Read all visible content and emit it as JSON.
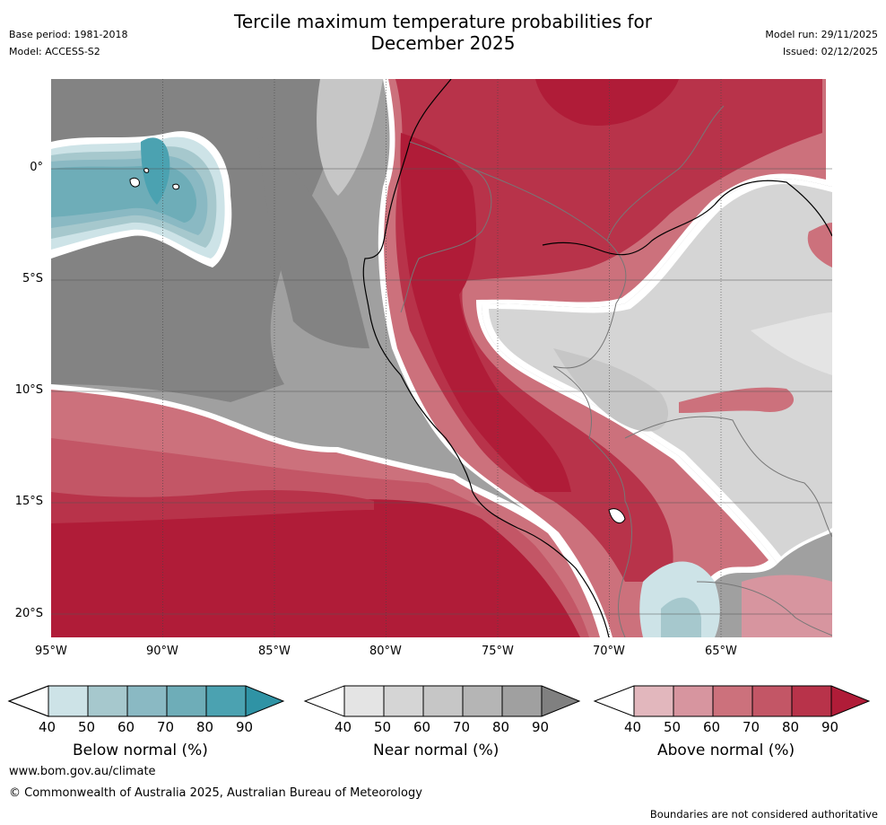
{
  "header": {
    "title_line1": "Tercile maximum temperature probabilities for",
    "title_line2": "December 2025",
    "base_period": "Base period: 1981-2018",
    "model": "Model: ACCESS-S2",
    "model_run": "Model run: 29/11/2025",
    "issued": "Issued: 02/12/2025"
  },
  "map": {
    "lat_labels": [
      "0°",
      "5°S",
      "10°S",
      "15°S",
      "20°S"
    ],
    "lon_labels": [
      "95°W",
      "90°W",
      "85°W",
      "80°W",
      "75°W",
      "70°W",
      "65°W"
    ]
  },
  "colorbars": [
    {
      "label": "Below normal (%)",
      "ticks": [
        "40",
        "50",
        "60",
        "70",
        "80",
        "90"
      ],
      "colors": [
        "#cde3e7",
        "#a6c8cd",
        "#8ab9c3",
        "#6eadb8",
        "#4ba2b1",
        "#2f93a5"
      ]
    },
    {
      "label": "Near normal (%)",
      "ticks": [
        "40",
        "50",
        "60",
        "70",
        "80",
        "90"
      ],
      "colors": [
        "#e4e4e4",
        "#d5d5d5",
        "#c6c6c6",
        "#b5b5b5",
        "#a0a0a0",
        "#808080"
      ]
    },
    {
      "label": "Above normal (%)",
      "ticks": [
        "40",
        "50",
        "60",
        "70",
        "80",
        "90"
      ],
      "colors": [
        "#e2b7bd",
        "#d7959f",
        "#cc717c",
        "#c35666",
        "#b8334a",
        "#b01c38"
      ]
    }
  ],
  "footer": {
    "url": "www.bom.gov.au/climate",
    "copyright": "© Commonwealth of Australia 2025, Australian Bureau of Meteorology",
    "disclaimer": "Boundaries are not considered authoritative"
  }
}
